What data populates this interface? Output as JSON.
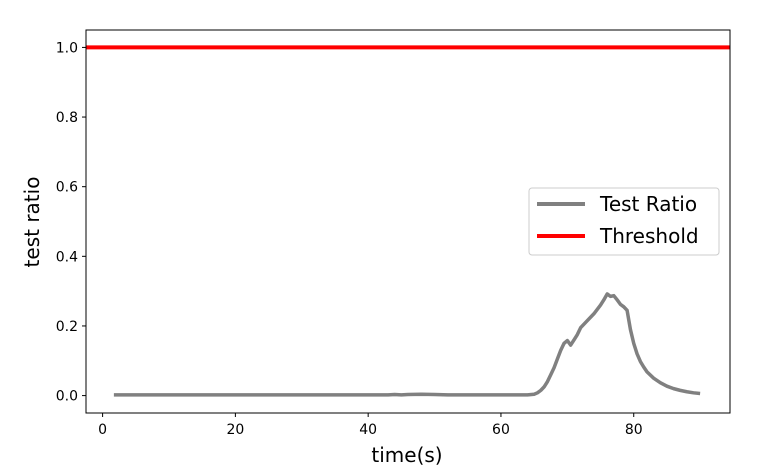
{
  "chart_data": {
    "type": "line",
    "xlabel": "time(s)",
    "ylabel": "test ratio",
    "xlim": [
      -2.5,
      94.5
    ],
    "ylim": [
      -0.05,
      1.05
    ],
    "xticks": [
      0,
      20,
      40,
      60,
      80
    ],
    "yticks": [
      0.0,
      0.2,
      0.4,
      0.6,
      0.8,
      1.0
    ],
    "xtick_labels": [
      "0",
      "20",
      "40",
      "60",
      "80"
    ],
    "ytick_labels": [
      "0.0",
      "0.2",
      "0.4",
      "0.6",
      "0.8",
      "1.0"
    ],
    "grid": false,
    "legend_position": "center-right",
    "series": [
      {
        "name": "Test Ratio",
        "color": "#808080",
        "x": [
          1.7,
          10,
          20,
          30,
          40,
          43,
          44,
          45,
          46,
          48,
          50,
          52,
          55,
          60,
          64,
          65,
          65.5,
          66,
          66.5,
          67,
          67.5,
          68,
          68.5,
          69,
          69.5,
          70,
          70.5,
          71,
          71.5,
          72,
          73,
          74,
          75,
          75.5,
          76,
          76.5,
          77,
          77.5,
          78,
          78.5,
          79,
          79.5,
          80,
          80.5,
          81,
          81.5,
          82,
          83,
          84,
          85,
          86,
          87,
          88,
          89,
          90
        ],
        "y": [
          0.002,
          0.002,
          0.002,
          0.002,
          0.002,
          0.002,
          0.003,
          0.002,
          0.003,
          0.004,
          0.003,
          0.002,
          0.002,
          0.002,
          0.002,
          0.004,
          0.008,
          0.015,
          0.025,
          0.04,
          0.06,
          0.08,
          0.105,
          0.13,
          0.15,
          0.158,
          0.145,
          0.16,
          0.175,
          0.195,
          0.215,
          0.235,
          0.26,
          0.275,
          0.292,
          0.285,
          0.287,
          0.275,
          0.262,
          0.255,
          0.245,
          0.19,
          0.15,
          0.12,
          0.098,
          0.082,
          0.068,
          0.05,
          0.037,
          0.027,
          0.02,
          0.015,
          0.011,
          0.008,
          0.006
        ]
      },
      {
        "name": "Threshold",
        "color": "#ff0000",
        "x": [
          -2.5,
          94.5
        ],
        "y": [
          1.0,
          1.0
        ]
      }
    ]
  }
}
